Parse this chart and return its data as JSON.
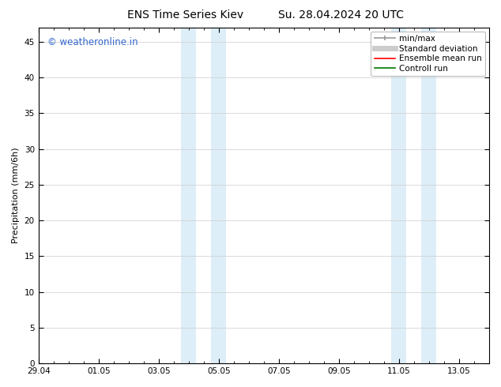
{
  "title_left": "ENS Time Series Kiev",
  "title_right": "Su. 28.04.2024 20 UTC",
  "ylabel": "Precipitation (mm/6h)",
  "ylim": [
    0,
    47
  ],
  "yticks": [
    0,
    5,
    10,
    15,
    20,
    25,
    30,
    35,
    40,
    45
  ],
  "xlim_days": [
    0,
    15
  ],
  "xtick_labels": [
    "29.04",
    "01.05",
    "03.05",
    "05.05",
    "07.05",
    "09.05",
    "11.05",
    "13.05"
  ],
  "xtick_positions_days": [
    0,
    2,
    4,
    6,
    8,
    10,
    12,
    14
  ],
  "shaded_bands": [
    {
      "x_start": 4.75,
      "x_end": 5.25
    },
    {
      "x_start": 5.75,
      "x_end": 6.25
    },
    {
      "x_start": 11.75,
      "x_end": 12.25
    },
    {
      "x_start": 12.75,
      "x_end": 13.25
    }
  ],
  "shaded_color": "#ddeef8",
  "background_color": "#ffffff",
  "grid_color": "#cccccc",
  "watermark_text": "© weatheronline.in",
  "watermark_color": "#3366cc",
  "legend_items": [
    {
      "label": "min/max",
      "color": "#999999",
      "lw": 1.2,
      "ls": "-",
      "type": "errorbar"
    },
    {
      "label": "Standard deviation",
      "color": "#cccccc",
      "lw": 5,
      "ls": "-",
      "type": "line"
    },
    {
      "label": "Ensemble mean run",
      "color": "#ff0000",
      "lw": 1.2,
      "ls": "-",
      "type": "line"
    },
    {
      "label": "Controll run",
      "color": "#007700",
      "lw": 1.2,
      "ls": "-",
      "type": "line"
    }
  ],
  "title_fontsize": 10,
  "axis_label_fontsize": 8,
  "tick_label_fontsize": 7.5,
  "legend_fontsize": 7.5,
  "watermark_fontsize": 8.5
}
